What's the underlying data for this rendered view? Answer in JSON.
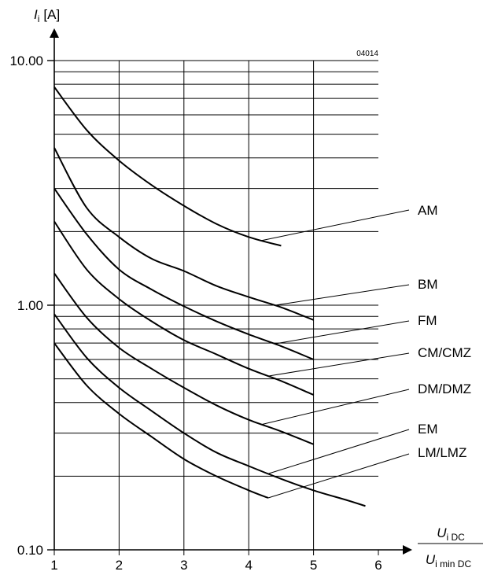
{
  "chart_data": {
    "type": "line",
    "code": "04014",
    "ylabel_main": "I",
    "ylabel_sub": "i",
    "ylabel_unit": "[A]",
    "xlabel_num_main": "U",
    "xlabel_num_sub": "i DC",
    "xlabel_den_main": "U",
    "xlabel_den_sub": "i min DC",
    "yscale": "log",
    "xlim": [
      1,
      6
    ],
    "ylim": [
      0.1,
      10
    ],
    "x_ticks": [
      "1",
      "2",
      "3",
      "4",
      "5",
      "6"
    ],
    "y_ticks": [
      {
        "value": 10,
        "label": "10.00"
      },
      {
        "value": 1,
        "label": "1.00"
      },
      {
        "value": 0.1,
        "label": "0.10"
      }
    ],
    "grid": true,
    "series": [
      {
        "name": "AM",
        "points": [
          [
            1,
            7.8
          ],
          [
            1.5,
            5.2
          ],
          [
            2,
            3.9
          ],
          [
            2.5,
            3.1
          ],
          [
            3,
            2.55
          ],
          [
            3.5,
            2.15
          ],
          [
            4,
            1.9
          ],
          [
            4.5,
            1.75
          ]
        ],
        "leader_x": 4.2
      },
      {
        "name": "BM",
        "points": [
          [
            1,
            4.4
          ],
          [
            1.5,
            2.5
          ],
          [
            2,
            1.9
          ],
          [
            2.5,
            1.55
          ],
          [
            3,
            1.38
          ],
          [
            3.5,
            1.2
          ],
          [
            4,
            1.08
          ],
          [
            4.5,
            0.98
          ],
          [
            5,
            0.87
          ]
        ],
        "leader_x": 4.4
      },
      {
        "name": "FM",
        "points": [
          [
            1,
            3.0
          ],
          [
            1.5,
            1.95
          ],
          [
            2,
            1.4
          ],
          [
            2.5,
            1.16
          ],
          [
            3,
            0.99
          ],
          [
            3.5,
            0.86
          ],
          [
            4,
            0.76
          ],
          [
            4.5,
            0.68
          ],
          [
            5,
            0.6
          ]
        ],
        "leader_x": 4.4
      },
      {
        "name": "CM/CMZ",
        "points": [
          [
            1,
            2.2
          ],
          [
            1.5,
            1.4
          ],
          [
            2,
            1.06
          ],
          [
            2.5,
            0.86
          ],
          [
            3,
            0.72
          ],
          [
            3.5,
            0.63
          ],
          [
            4,
            0.55
          ],
          [
            4.5,
            0.49
          ],
          [
            5,
            0.43
          ]
        ],
        "leader_x": 4.3
      },
      {
        "name": "DM/DMZ",
        "points": [
          [
            1,
            1.35
          ],
          [
            1.5,
            0.89
          ],
          [
            2,
            0.67
          ],
          [
            2.5,
            0.55
          ],
          [
            3,
            0.46
          ],
          [
            3.5,
            0.39
          ],
          [
            4,
            0.34
          ],
          [
            4.5,
            0.305
          ],
          [
            5,
            0.27
          ]
        ],
        "leader_x": 4.2
      },
      {
        "name": "EM",
        "points": [
          [
            1,
            0.92
          ],
          [
            1.5,
            0.61
          ],
          [
            2,
            0.46
          ],
          [
            2.5,
            0.37
          ],
          [
            3,
            0.3
          ],
          [
            3.5,
            0.25
          ],
          [
            4,
            0.22
          ],
          [
            4.5,
            0.195
          ],
          [
            5,
            0.175
          ],
          [
            5.5,
            0.16
          ],
          [
            5.8,
            0.151
          ]
        ],
        "leader_x": 4.3
      },
      {
        "name": "LM/LMZ",
        "points": [
          [
            1,
            0.7
          ],
          [
            1.5,
            0.47
          ],
          [
            2,
            0.36
          ],
          [
            2.5,
            0.29
          ],
          [
            3,
            0.235
          ],
          [
            3.5,
            0.2
          ],
          [
            4,
            0.175
          ],
          [
            4.3,
            0.163
          ]
        ],
        "leader_x": 4.3
      }
    ]
  }
}
